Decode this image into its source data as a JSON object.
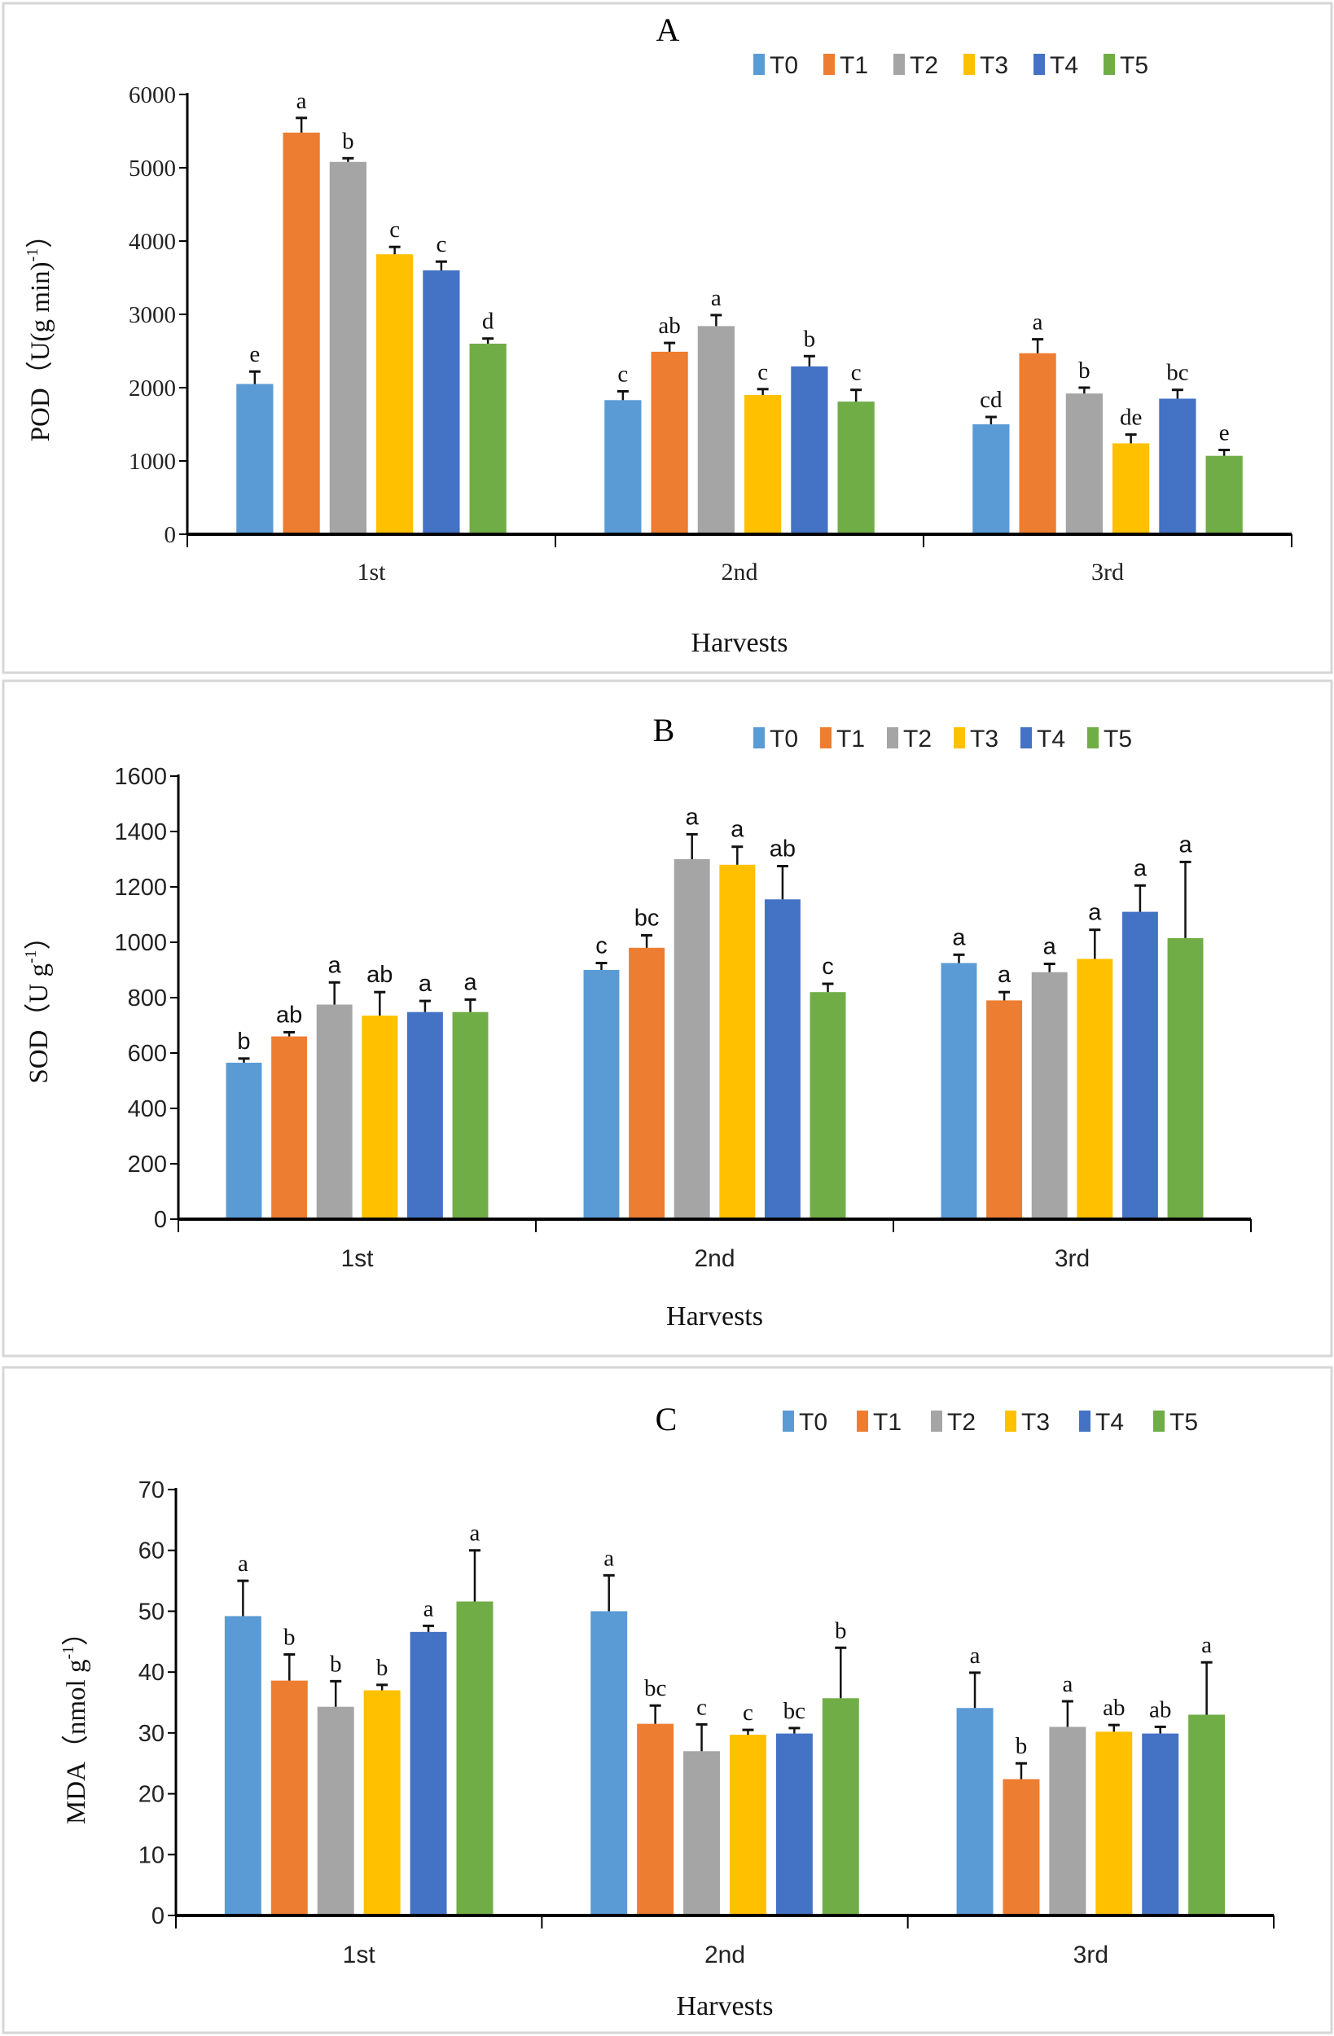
{
  "chart_data": [
    {
      "type": "bar",
      "title": "A",
      "xlabel": "Harvests",
      "ylabel": {
        "text": "POD（U(g min)",
        "sup": "-1",
        "close": "）"
      },
      "ylim": [
        0,
        6000
      ],
      "yticks": [
        0,
        1000,
        2000,
        3000,
        4000,
        5000,
        6000
      ],
      "categories": [
        "1st",
        "2nd",
        "3rd"
      ],
      "legend_position": "top-right",
      "grid": false,
      "series": [
        {
          "name": "T0",
          "color": "#5B9BD5",
          "values": [
            2050,
            1830,
            1500
          ],
          "errors": [
            170,
            120,
            100
          ],
          "letters": [
            "e",
            "c",
            "cd"
          ]
        },
        {
          "name": "T1",
          "color": "#ED7D31",
          "values": [
            5480,
            2490,
            2470
          ],
          "errors": [
            200,
            120,
            190
          ],
          "letters": [
            "a",
            "ab",
            "a"
          ]
        },
        {
          "name": "T2",
          "color": "#A5A5A5",
          "values": [
            5080,
            2840,
            1920
          ],
          "errors": [
            50,
            150,
            80
          ],
          "letters": [
            "b",
            "a",
            "b"
          ]
        },
        {
          "name": "T3",
          "color": "#FFC000",
          "values": [
            3820,
            1900,
            1240
          ],
          "errors": [
            100,
            80,
            120
          ],
          "letters": [
            "c",
            "c",
            "de"
          ]
        },
        {
          "name": "T4",
          "color": "#4472C4",
          "values": [
            3600,
            2290,
            1850
          ],
          "errors": [
            120,
            140,
            120
          ],
          "letters": [
            "c",
            "b",
            "bc"
          ]
        },
        {
          "name": "T5",
          "color": "#70AD47",
          "values": [
            2600,
            1810,
            1070
          ],
          "errors": [
            70,
            160,
            80
          ],
          "letters": [
            "d",
            "c",
            "e"
          ]
        }
      ]
    },
    {
      "type": "bar",
      "title": "B",
      "xlabel": "Harvests",
      "ylabel": {
        "text": "SOD（U g",
        "sup": "-1",
        "close": "）"
      },
      "ylim": [
        0,
        1600
      ],
      "yticks": [
        0,
        200,
        400,
        600,
        800,
        1000,
        1200,
        1400,
        1600
      ],
      "categories": [
        "1st",
        "2nd",
        "3rd"
      ],
      "legend_position": "top-right",
      "grid": false,
      "series": [
        {
          "name": "T0",
          "color": "#5B9BD5",
          "values": [
            565,
            900,
            925
          ],
          "errors": [
            15,
            25,
            30
          ],
          "letters": [
            "b",
            "c",
            "a"
          ]
        },
        {
          "name": "T1",
          "color": "#ED7D31",
          "values": [
            660,
            980,
            790
          ],
          "errors": [
            15,
            45,
            30
          ],
          "letters": [
            "ab",
            "bc",
            "a"
          ]
        },
        {
          "name": "T2",
          "color": "#A5A5A5",
          "values": [
            775,
            1300,
            892
          ],
          "errors": [
            80,
            90,
            30
          ],
          "letters": [
            "a",
            "a",
            "a"
          ]
        },
        {
          "name": "T3",
          "color": "#FFC000",
          "values": [
            735,
            1280,
            940
          ],
          "errors": [
            85,
            65,
            105
          ],
          "letters": [
            "ab",
            "a",
            "a"
          ]
        },
        {
          "name": "T4",
          "color": "#4472C4",
          "values": [
            748,
            1155,
            1110
          ],
          "errors": [
            40,
            120,
            95
          ],
          "letters": [
            "a",
            "ab",
            "a"
          ]
        },
        {
          "name": "T5",
          "color": "#70AD47",
          "values": [
            748,
            820,
            1015
          ],
          "errors": [
            45,
            30,
            275
          ],
          "letters": [
            "a",
            "c",
            "a"
          ]
        }
      ]
    },
    {
      "type": "bar",
      "title": "C",
      "xlabel": "Harvests",
      "ylabel": {
        "text": "MDA（nmol g",
        "sup": "-1",
        "close": "）"
      },
      "ylim": [
        0,
        70
      ],
      "yticks": [
        0,
        10,
        20,
        30,
        40,
        50,
        60,
        70
      ],
      "categories": [
        "1st",
        "2nd",
        "3rd"
      ],
      "legend_position": "top-right",
      "grid": false,
      "series": [
        {
          "name": "T0",
          "color": "#5B9BD5",
          "values": [
            49.2,
            50.0,
            34.1
          ],
          "errors": [
            5.8,
            5.9,
            5.8
          ],
          "letters": [
            "a",
            "a",
            "a"
          ]
        },
        {
          "name": "T1",
          "color": "#ED7D31",
          "values": [
            38.6,
            31.5,
            22.4
          ],
          "errors": [
            4.3,
            3.0,
            2.6
          ],
          "letters": [
            "b",
            "bc",
            "b"
          ]
        },
        {
          "name": "T2",
          "color": "#A5A5A5",
          "values": [
            34.3,
            27.0,
            31.0
          ],
          "errors": [
            4.2,
            4.4,
            4.2
          ],
          "letters": [
            "b",
            "c",
            "a"
          ]
        },
        {
          "name": "T3",
          "color": "#FFC000",
          "values": [
            37.0,
            29.7,
            30.2
          ],
          "errors": [
            0.9,
            0.8,
            1.1
          ],
          "letters": [
            "b",
            "c",
            "ab"
          ]
        },
        {
          "name": "T4",
          "color": "#4472C4",
          "values": [
            46.6,
            29.9,
            29.9
          ],
          "errors": [
            1.0,
            0.9,
            1.1
          ],
          "letters": [
            "a",
            "bc",
            "ab"
          ]
        },
        {
          "name": "T5",
          "color": "#70AD47",
          "values": [
            51.6,
            35.7,
            33.0
          ],
          "errors": [
            8.4,
            8.3,
            8.6
          ],
          "letters": [
            "a",
            "b",
            "a"
          ]
        }
      ]
    }
  ]
}
